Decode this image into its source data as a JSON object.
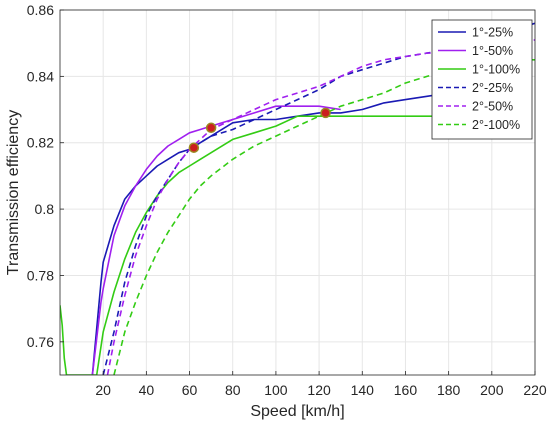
{
  "chart_data": {
    "type": "line",
    "xlabel": "Speed [km/h]",
    "ylabel": "Transmission efficiency",
    "xlim": [
      0,
      220
    ],
    "ylim": [
      0.75,
      0.86
    ],
    "x_ticks": [
      20,
      40,
      60,
      80,
      100,
      120,
      140,
      160,
      180,
      200,
      220
    ],
    "y_ticks": [
      0.76,
      0.78,
      0.8,
      0.82,
      0.84,
      0.86
    ],
    "y_tick_labels": [
      "0.76",
      "0.78",
      "0.8",
      "0.82",
      "0.84",
      "0.86"
    ],
    "grid": true,
    "legend_position": "top-right",
    "series": [
      {
        "name": "1°-25%",
        "color": "#1a1ab4",
        "style": "solid",
        "points": [
          [
            15,
            0.75
          ],
          [
            19,
            0.778
          ],
          [
            20,
            0.784
          ],
          [
            25,
            0.795
          ],
          [
            30,
            0.803
          ],
          [
            35,
            0.807
          ],
          [
            40,
            0.81
          ],
          [
            45,
            0.813
          ],
          [
            50,
            0.815
          ],
          [
            55,
            0.817
          ],
          [
            60,
            0.818
          ],
          [
            65,
            0.82
          ],
          [
            70,
            0.822
          ],
          [
            80,
            0.826
          ],
          [
            90,
            0.827
          ],
          [
            100,
            0.827
          ],
          [
            110,
            0.828
          ],
          [
            120,
            0.829
          ],
          [
            130,
            0.829
          ],
          [
            140,
            0.83
          ],
          [
            150,
            0.832
          ],
          [
            160,
            0.833
          ],
          [
            170,
            0.834
          ],
          [
            180,
            0.835
          ]
        ]
      },
      {
        "name": "1°-50%",
        "color": "#a020ef",
        "style": "solid",
        "points": [
          [
            15,
            0.75
          ],
          [
            19,
            0.772
          ],
          [
            20,
            0.776
          ],
          [
            25,
            0.792
          ],
          [
            30,
            0.801
          ],
          [
            35,
            0.807
          ],
          [
            40,
            0.812
          ],
          [
            45,
            0.816
          ],
          [
            50,
            0.819
          ],
          [
            55,
            0.821
          ],
          [
            60,
            0.823
          ],
          [
            65,
            0.824
          ],
          [
            70,
            0.825
          ],
          [
            80,
            0.827
          ],
          [
            90,
            0.829
          ],
          [
            100,
            0.831
          ],
          [
            110,
            0.831
          ],
          [
            120,
            0.831
          ],
          [
            130,
            0.83
          ]
        ]
      },
      {
        "name": "1°-100%",
        "color": "#33cc14",
        "style": "solid",
        "points": [
          [
            0,
            0.771
          ],
          [
            1,
            0.765
          ],
          [
            2,
            0.755
          ],
          [
            3,
            0.75
          ],
          [
            17,
            0.75
          ],
          [
            20,
            0.763
          ],
          [
            25,
            0.775
          ],
          [
            30,
            0.785
          ],
          [
            35,
            0.793
          ],
          [
            40,
            0.799
          ],
          [
            45,
            0.804
          ],
          [
            50,
            0.808
          ],
          [
            55,
            0.811
          ],
          [
            60,
            0.813
          ],
          [
            65,
            0.815
          ],
          [
            70,
            0.817
          ],
          [
            80,
            0.821
          ],
          [
            90,
            0.823
          ],
          [
            100,
            0.825
          ],
          [
            110,
            0.828
          ],
          [
            120,
            0.828
          ],
          [
            130,
            0.828
          ],
          [
            140,
            0.828
          ],
          [
            150,
            0.828
          ],
          [
            160,
            0.828
          ],
          [
            170,
            0.828
          ],
          [
            180,
            0.828
          ]
        ]
      },
      {
        "name": "2°-25%",
        "color": "#1a1ab4",
        "style": "dashed",
        "points": [
          [
            20,
            0.75
          ],
          [
            25,
            0.763
          ],
          [
            30,
            0.778
          ],
          [
            35,
            0.789
          ],
          [
            40,
            0.798
          ],
          [
            45,
            0.804
          ],
          [
            50,
            0.809
          ],
          [
            55,
            0.814
          ],
          [
            60,
            0.818
          ],
          [
            65,
            0.82
          ],
          [
            70,
            0.822
          ],
          [
            80,
            0.824
          ],
          [
            90,
            0.827
          ],
          [
            100,
            0.83
          ],
          [
            110,
            0.833
          ],
          [
            120,
            0.836
          ],
          [
            130,
            0.84
          ],
          [
            140,
            0.842
          ],
          [
            150,
            0.844
          ],
          [
            160,
            0.846
          ],
          [
            170,
            0.847
          ],
          [
            180,
            0.848
          ],
          [
            190,
            0.85
          ],
          [
            200,
            0.852
          ],
          [
            210,
            0.854
          ],
          [
            220,
            0.856
          ]
        ]
      },
      {
        "name": "2°-50%",
        "color": "#a020ef",
        "style": "dashed",
        "points": [
          [
            22,
            0.75
          ],
          [
            25,
            0.76
          ],
          [
            30,
            0.774
          ],
          [
            35,
            0.786
          ],
          [
            40,
            0.795
          ],
          [
            45,
            0.803
          ],
          [
            50,
            0.809
          ],
          [
            55,
            0.814
          ],
          [
            60,
            0.818
          ],
          [
            65,
            0.821
          ],
          [
            70,
            0.824
          ],
          [
            80,
            0.827
          ],
          [
            90,
            0.83
          ],
          [
            100,
            0.833
          ],
          [
            110,
            0.835
          ],
          [
            120,
            0.837
          ],
          [
            130,
            0.84
          ],
          [
            140,
            0.843
          ],
          [
            150,
            0.845
          ],
          [
            160,
            0.846
          ],
          [
            170,
            0.847
          ],
          [
            180,
            0.847
          ],
          [
            190,
            0.848
          ],
          [
            200,
            0.849
          ],
          [
            210,
            0.85
          ],
          [
            220,
            0.851
          ]
        ]
      },
      {
        "name": "2°-100%",
        "color": "#33cc14",
        "style": "dashed",
        "points": [
          [
            25,
            0.75
          ],
          [
            30,
            0.763
          ],
          [
            35,
            0.772
          ],
          [
            40,
            0.78
          ],
          [
            45,
            0.787
          ],
          [
            50,
            0.793
          ],
          [
            55,
            0.798
          ],
          [
            60,
            0.803
          ],
          [
            65,
            0.807
          ],
          [
            70,
            0.81
          ],
          [
            80,
            0.815
          ],
          [
            90,
            0.819
          ],
          [
            100,
            0.822
          ],
          [
            110,
            0.825
          ],
          [
            120,
            0.828
          ],
          [
            130,
            0.831
          ],
          [
            140,
            0.833
          ],
          [
            150,
            0.835
          ],
          [
            160,
            0.838
          ],
          [
            170,
            0.84
          ],
          [
            180,
            0.842
          ],
          [
            190,
            0.843
          ],
          [
            200,
            0.844
          ],
          [
            210,
            0.845
          ],
          [
            220,
            0.845
          ]
        ]
      }
    ],
    "markers": [
      {
        "x": 62,
        "y": 0.8185
      },
      {
        "x": 70,
        "y": 0.8245
      },
      {
        "x": 123,
        "y": 0.829
      }
    ],
    "marker_fill": "#cc1f1f",
    "marker_edge": "#9a8a20"
  }
}
